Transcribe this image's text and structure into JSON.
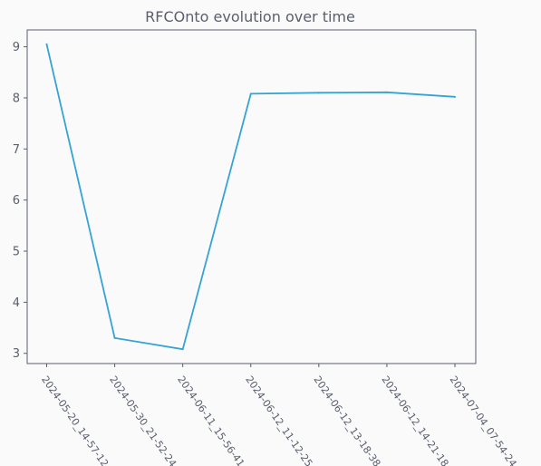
{
  "chart_data": {
    "type": "line",
    "title": "RFCOnto evolution over time",
    "xlabel": "",
    "ylabel": "",
    "categories": [
      "2024-05-20_14-57-12",
      "2024-05-30_21-52-24",
      "2024-06-11_15-56-41",
      "2024-06-12_11-12-25",
      "2024-06-12_13-18-38",
      "2024-06-12_14-21-18",
      "2024-07-04_07-54-24"
    ],
    "series": [
      {
        "values": [
          9.05,
          3.3,
          3.08,
          8.08,
          8.1,
          8.11,
          8.02
        ],
        "color": "#35a3d4"
      }
    ],
    "yticks": [
      "3",
      "4",
      "5",
      "6",
      "7",
      "8",
      "9"
    ],
    "ylim": [
      2.8,
      9.33
    ],
    "grid": false,
    "legend": "none",
    "colors": {
      "background": "#fafafa",
      "plot_background": "#fafafa",
      "axis": "#5a5f6e",
      "text": "#5a5f6e"
    }
  }
}
